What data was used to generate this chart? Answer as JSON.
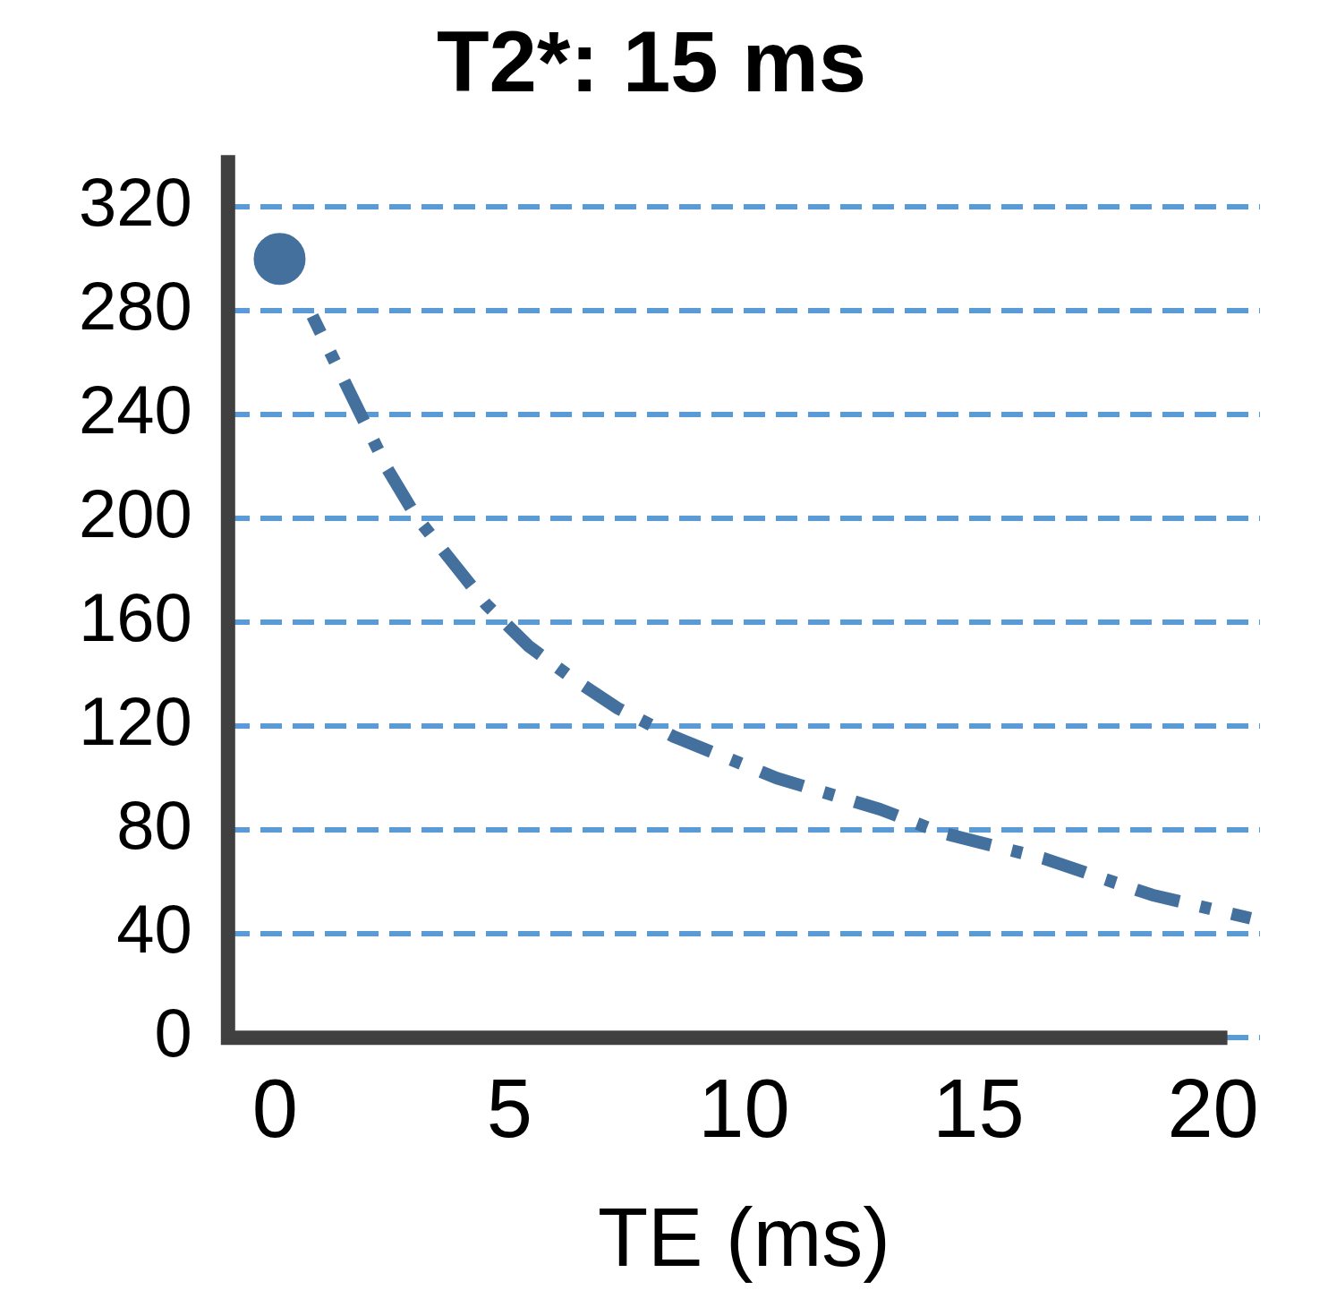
{
  "chart_data": {
    "type": "line",
    "title": "T2*: 15 ms",
    "xlabel": "TE (ms)",
    "xlim": [
      -1,
      21
    ],
    "xticks": [
      0,
      5,
      10,
      15,
      20
    ],
    "ylim": [
      0,
      340
    ],
    "yticks": [
      0,
      40,
      80,
      120,
      160,
      200,
      240,
      280,
      320
    ],
    "grid": "y",
    "line_style": "dashed",
    "series": [
      {
        "type": "scatter",
        "marker": "circle",
        "color": "#44709e",
        "x": [
          0.1
        ],
        "values": [
          300
        ]
      },
      {
        "color": "#44709e",
        "x": [
          0.8,
          2.4,
          3.0,
          4.5,
          5.4,
          6.3,
          7.3,
          8.5,
          10.7,
          12.9,
          14.2,
          16.4,
          17.7,
          18.7,
          20.8
        ],
        "values": [
          278,
          219,
          201,
          167,
          151,
          139,
          127,
          116,
          100,
          88,
          79,
          69,
          61,
          55,
          46
        ]
      }
    ]
  }
}
